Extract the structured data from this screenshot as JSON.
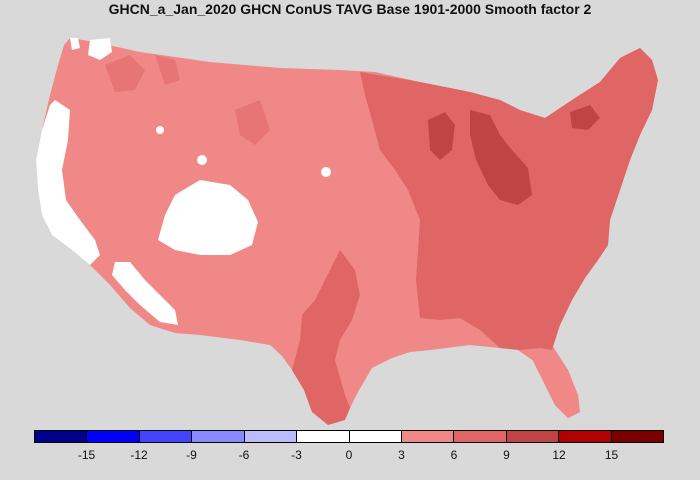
{
  "title": "GHCN_a_Jan_2020 GHCN ConUS TAVG Base 1901-2000 Smooth factor 2",
  "legend": {
    "bins": [
      {
        "range": "<-15",
        "color": "#00008b"
      },
      {
        "range": "-15 to -12",
        "color": "#0000ff"
      },
      {
        "range": "-12 to -9",
        "color": "#4444ff"
      },
      {
        "range": "-9 to -6",
        "color": "#8888ff"
      },
      {
        "range": "-6 to -3",
        "color": "#bbbbff"
      },
      {
        "range": "-3 to 0",
        "color": "#ffffff"
      },
      {
        "range": "0 to 3",
        "color": "#ffffff"
      },
      {
        "range": "3 to 6",
        "color": "#f08888"
      },
      {
        "range": "6 to 9",
        "color": "#e06666"
      },
      {
        "range": "9 to 12",
        "color": "#c04444"
      },
      {
        "range": "12 to 15",
        "color": "#b00000"
      },
      {
        "range": ">15",
        "color": "#7a0000"
      }
    ],
    "ticks": [
      "-15",
      "-12",
      "-9",
      "-6",
      "-3",
      "0",
      "3",
      "6",
      "9",
      "12",
      "15"
    ]
  },
  "map_regions": [
    {
      "name": "west-coast",
      "anomaly_bin": "-3 to 3"
    },
    {
      "name": "great-basin",
      "anomaly_bin": "-3 to 3"
    },
    {
      "name": "mountain-west-plains",
      "anomaly_bin": "3 to 6"
    },
    {
      "name": "texas-central",
      "anomaly_bin": "6 to 9"
    },
    {
      "name": "midwest-east",
      "anomaly_bin": "6 to 9"
    },
    {
      "name": "northeast",
      "anomaly_bin": "6 to 9"
    },
    {
      "name": "florida",
      "anomaly_bin": "3 to 6"
    },
    {
      "name": "wisconsin-michigan-maine-hotspots",
      "anomaly_bin": "9 to 12"
    }
  ]
}
